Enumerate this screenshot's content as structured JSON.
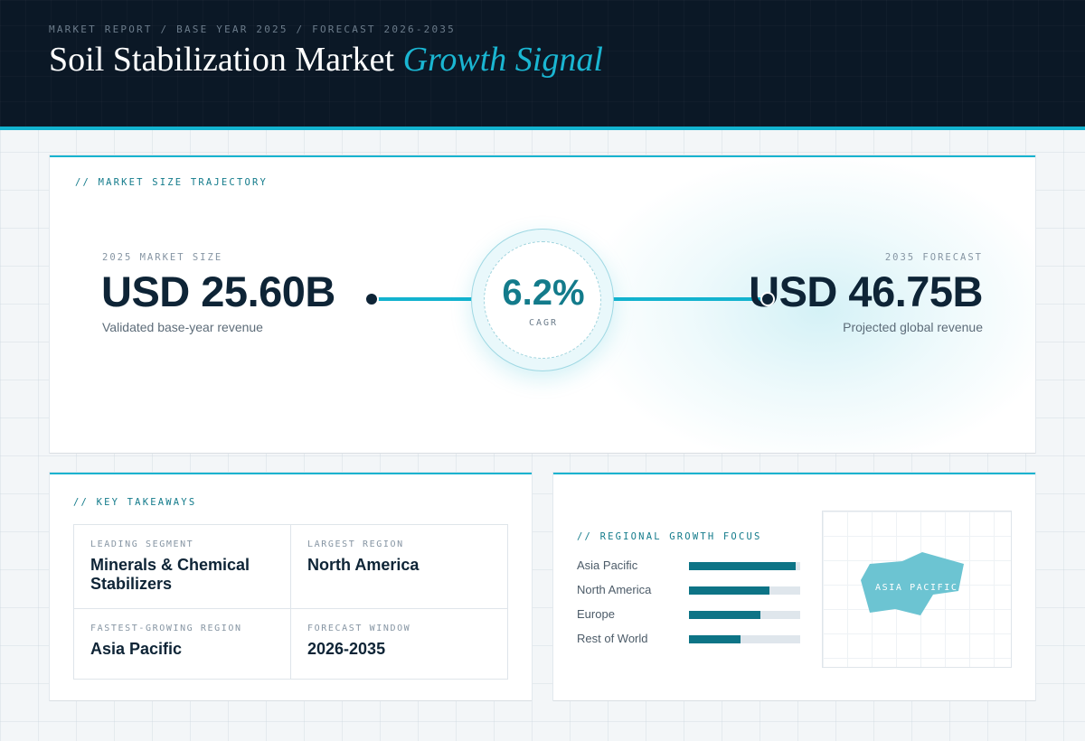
{
  "header": {
    "breadcrumb": "MARKET REPORT / BASE YEAR 2025 / FORECAST 2026-2035",
    "title_main": "Soil Stabilization Market",
    "title_accent": "Growth Signal"
  },
  "trajectory": {
    "section_label": "// MARKET SIZE TRAJECTORY",
    "base": {
      "label": "2025 MARKET SIZE",
      "value": "USD 25.60B",
      "sub": "Validated base-year revenue"
    },
    "cagr": {
      "value": "6.2%",
      "label": "CAGR"
    },
    "forecast": {
      "label": "2035 FORECAST",
      "value": "USD 46.75B",
      "sub": "Projected global revenue"
    }
  },
  "takeaways": {
    "section_label": "// KEY TAKEAWAYS",
    "items": [
      {
        "label": "LEADING SEGMENT",
        "value": "Minerals & Chemical Stabilizers"
      },
      {
        "label": "LARGEST REGION",
        "value": "North America"
      },
      {
        "label": "FASTEST-GROWING REGION",
        "value": "Asia Pacific"
      },
      {
        "label": "FORECAST WINDOW",
        "value": "2026-2035"
      }
    ]
  },
  "regional": {
    "section_label": "// REGIONAL GROWTH FOCUS",
    "regions": [
      {
        "name": "Asia Pacific",
        "level": 0.96
      },
      {
        "name": "North America",
        "level": 0.72
      },
      {
        "name": "Europe",
        "level": 0.64
      },
      {
        "name": "Rest of World",
        "level": 0.46
      }
    ],
    "map_label": "ASIA PACIFIC"
  },
  "colors": {
    "header_bg": "#0b1826",
    "accent": "#13b3cf",
    "accent_dark": "#0d7486",
    "text_primary": "#0e2436",
    "map_fill": "#6cc4d2"
  }
}
